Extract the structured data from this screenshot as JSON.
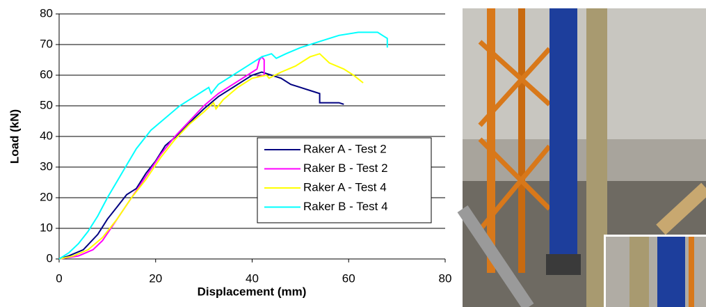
{
  "chart_data": {
    "type": "line",
    "x_label": "Displacement (mm)",
    "y_label": "Load (kN)",
    "xlim": [
      0,
      80
    ],
    "xticks": [
      0,
      20,
      40,
      60,
      80
    ],
    "ylim": [
      0,
      80
    ],
    "yticks": [
      0,
      10,
      20,
      30,
      40,
      50,
      60,
      70,
      80
    ],
    "grid": true,
    "legend": "lower right",
    "series": [
      {
        "name": "Raker A - Test 2",
        "color": "#000080",
        "x": [
          0,
          2,
          5,
          8,
          10,
          12,
          14,
          16,
          18,
          20,
          22,
          25,
          28,
          30,
          33,
          36,
          38,
          40,
          42,
          44,
          46,
          48,
          50,
          52,
          54,
          54,
          58,
          59
        ],
        "values": [
          0,
          1,
          3,
          8,
          13,
          17,
          21,
          23,
          28,
          32,
          37,
          41,
          46,
          49,
          53,
          56,
          58,
          60,
          61,
          60,
          59,
          57,
          56,
          55,
          54,
          51,
          51,
          50.5
        ]
      },
      {
        "name": "Raker B - Test 2",
        "color": "#ff00ff",
        "x": [
          0,
          4,
          7,
          9,
          12,
          15,
          18,
          21,
          24,
          27,
          30,
          33,
          36,
          39,
          41,
          41.5,
          42,
          42.5,
          42.5,
          41
        ],
        "values": [
          0,
          1,
          3,
          6,
          13,
          20,
          27,
          34,
          40,
          45,
          50,
          54,
          57,
          60,
          62,
          65,
          66,
          65,
          60,
          59.5
        ]
      },
      {
        "name": "Raker A - Test 4",
        "color": "#ffff00",
        "x": [
          0,
          3,
          6,
          9,
          12,
          15,
          18,
          21,
          24,
          27,
          30,
          32,
          32.5,
          34,
          37,
          40,
          43,
          43.5,
          46,
          49,
          52,
          54,
          56,
          59,
          61,
          63
        ],
        "values": [
          0,
          1,
          3,
          7,
          13,
          20,
          26,
          33,
          39,
          44,
          48,
          51,
          49,
          52,
          56,
          59,
          60,
          59,
          61,
          63,
          66,
          67,
          64,
          62,
          60,
          57.5
        ]
      },
      {
        "name": "Raker B - Test 4",
        "color": "#00ffff",
        "x": [
          0,
          2,
          4,
          6,
          8,
          10,
          13,
          16,
          19,
          22,
          25,
          28,
          30,
          31,
          31.5,
          33,
          36,
          39,
          42,
          44,
          45,
          47,
          50,
          54,
          58,
          62,
          66,
          67,
          68,
          68
        ],
        "values": [
          0,
          2,
          5,
          9,
          14,
          20,
          28,
          36,
          42,
          46,
          50,
          53,
          55,
          56,
          54,
          57,
          60,
          63,
          66,
          67,
          65.5,
          67,
          69,
          71,
          73,
          74,
          74,
          73,
          72,
          69
        ]
      }
    ]
  }
}
